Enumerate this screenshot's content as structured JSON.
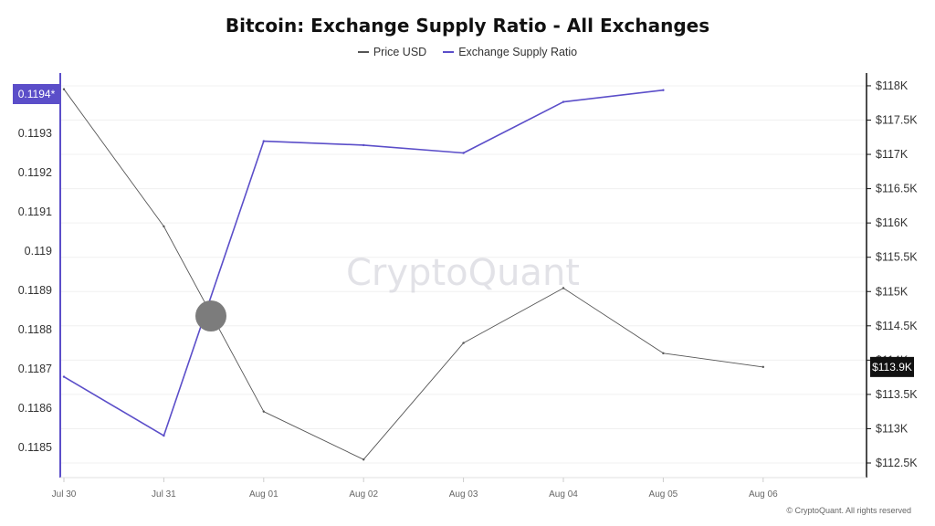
{
  "chart_data": {
    "type": "line",
    "title": "Bitcoin: Exchange Supply Ratio - All Exchanges",
    "categories": [
      "Jul 30",
      "Jul 31",
      "Aug 01",
      "Aug 02",
      "Aug 03",
      "Aug 04",
      "Aug 05",
      "Aug 06"
    ],
    "series": [
      {
        "name": "Price USD",
        "axis": "right",
        "color": "#555555",
        "values": [
          117950,
          115950,
          113250,
          112550,
          114250,
          115050,
          114100,
          113900
        ]
      },
      {
        "name": "Exchange Supply Ratio",
        "axis": "left",
        "color": "#5b4ec9",
        "values": [
          0.11868,
          0.11853,
          0.11928,
          0.11927,
          0.11925,
          0.11938,
          0.11941,
          null
        ]
      }
    ],
    "left_axis": {
      "ticks": [
        "0.1185",
        "0.1186",
        "0.1187",
        "0.1188",
        "0.1189",
        "0.119",
        "0.1191",
        "0.1192",
        "0.1193"
      ],
      "ylim": [
        0.1184,
        0.11945
      ],
      "current_label": "0.1194*",
      "current_value": 0.1194,
      "color": "#5b4ec9"
    },
    "right_axis": {
      "ticks": [
        "$112.5K",
        "$113K",
        "$113.5K",
        "$114K",
        "$114.5K",
        "$115K",
        "$115.5K",
        "$116K",
        "$116.5K",
        "$117K",
        "$117.5K",
        "$118K"
      ],
      "tick_values": [
        112500,
        113000,
        113500,
        114000,
        114500,
        115000,
        115500,
        116000,
        116500,
        117000,
        117500,
        118000
      ],
      "current_label": "$113.9K",
      "current_value": 113900
    },
    "grid": true,
    "legend": "top-center",
    "watermark": "CryptoQuant"
  },
  "footer": "© CryptoQuant. All rights reserved"
}
